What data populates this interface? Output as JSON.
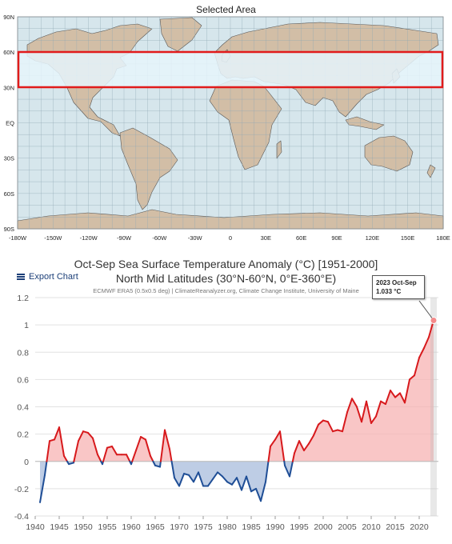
{
  "map": {
    "title": "Selected Area",
    "lat_ticks": [
      "90N",
      "60N",
      "30N",
      "EQ",
      "30S",
      "60S",
      "90S"
    ],
    "lon_ticks": [
      "-180W",
      "-150W",
      "-120W",
      "-90W",
      "-60W",
      "-30W",
      "0",
      "30E",
      "60E",
      "90E",
      "120E",
      "150E",
      "180E"
    ],
    "selection": {
      "lat_min": 30,
      "lat_max": 60,
      "lon_min": -180,
      "lon_max": 180
    },
    "colors": {
      "ocean": "#d6e6ec",
      "land": "#d2bea6",
      "selection": "#e11b1b",
      "selection_fill": "#e6f4fb"
    }
  },
  "chart_data": {
    "type": "line",
    "title": "Oct-Sep Sea Surface Temperature Anomaly (°C) [1951-2000]",
    "subtitle": "North Mid Latitudes (30°N-60°N, 0°E-360°E)",
    "credit": "ECMWF ERA5 (0.5x0.5 deg) | ClimateReanalyzer.org, Climate Change Institute, University of Maine",
    "ylim": [
      -0.4,
      1.2
    ],
    "xlim": [
      1940,
      2024
    ],
    "y_ticks": [
      "1.2",
      "1",
      "0.8",
      "0.6",
      "0.4",
      "0.2",
      "0",
      "-0.2",
      "-0.4"
    ],
    "x_ticks": [
      "1940",
      "1945",
      "1950",
      "1955",
      "1960",
      "1965",
      "1970",
      "1975",
      "1980",
      "1985",
      "1990",
      "1995",
      "2000",
      "2005",
      "2010",
      "2015",
      "2020"
    ],
    "positive_color": "#d7191c",
    "negative_color": "#1f4e96",
    "x": [
      1941,
      1942,
      1943,
      1944,
      1945,
      1946,
      1947,
      1948,
      1949,
      1950,
      1951,
      1952,
      1953,
      1954,
      1955,
      1956,
      1957,
      1958,
      1959,
      1960,
      1961,
      1962,
      1963,
      1964,
      1965,
      1966,
      1967,
      1968,
      1969,
      1970,
      1971,
      1972,
      1973,
      1974,
      1975,
      1976,
      1977,
      1978,
      1979,
      1980,
      1981,
      1982,
      1983,
      1984,
      1985,
      1986,
      1987,
      1988,
      1989,
      1990,
      1991,
      1992,
      1993,
      1994,
      1995,
      1996,
      1997,
      1998,
      1999,
      2000,
      2001,
      2002,
      2003,
      2004,
      2005,
      2006,
      2007,
      2008,
      2009,
      2010,
      2011,
      2012,
      2013,
      2014,
      2015,
      2016,
      2017,
      2018,
      2019,
      2020,
      2021,
      2022,
      2023
    ],
    "y": [
      -0.3,
      -0.1,
      0.15,
      0.16,
      0.25,
      0.04,
      -0.02,
      -0.01,
      0.15,
      0.22,
      0.21,
      0.17,
      0.05,
      -0.02,
      0.1,
      0.11,
      0.05,
      0.05,
      0.05,
      -0.02,
      0.08,
      0.18,
      0.16,
      0.04,
      -0.03,
      -0.04,
      0.23,
      0.09,
      -0.12,
      -0.18,
      -0.09,
      -0.1,
      -0.15,
      -0.08,
      -0.18,
      -0.18,
      -0.13,
      -0.08,
      -0.11,
      -0.15,
      -0.17,
      -0.12,
      -0.21,
      -0.11,
      -0.22,
      -0.2,
      -0.29,
      -0.15,
      0.11,
      0.16,
      0.22,
      -0.03,
      -0.11,
      0.06,
      0.15,
      0.08,
      0.13,
      0.19,
      0.27,
      0.3,
      0.29,
      0.22,
      0.23,
      0.22,
      0.36,
      0.46,
      0.4,
      0.29,
      0.44,
      0.28,
      0.33,
      0.44,
      0.42,
      0.52,
      0.47,
      0.5,
      0.43,
      0.6,
      0.63,
      0.76,
      0.83,
      0.91,
      1.033
    ],
    "tooltip": {
      "label": "2023 Oct-Sep",
      "value": "1.033 °C"
    }
  },
  "export_label": "Export Chart"
}
